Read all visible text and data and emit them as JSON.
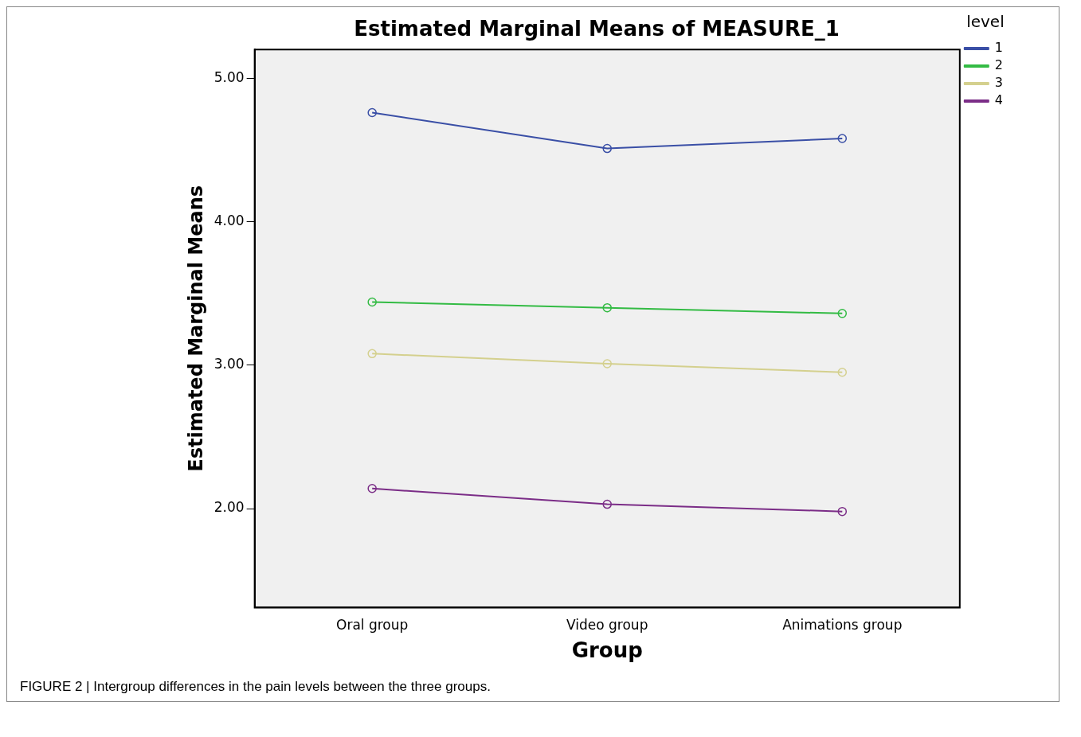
{
  "chart_data": {
    "type": "line",
    "title": "Estimated Marginal Means of MEASURE_1",
    "xlabel": "Group",
    "ylabel": "Estimated Marginal Means",
    "legend_title": "level",
    "categories": [
      "Oral group",
      "Video group",
      "Animations group"
    ],
    "series": [
      {
        "name": "1",
        "color": "#3a4fa6",
        "values": [
          4.76,
          4.51,
          4.58
        ]
      },
      {
        "name": "2",
        "color": "#33bb44",
        "values": [
          3.44,
          3.4,
          3.36
        ]
      },
      {
        "name": "3",
        "color": "#d4d08e",
        "values": [
          3.08,
          3.01,
          2.95
        ]
      },
      {
        "name": "4",
        "color": "#7b2d87",
        "values": [
          2.14,
          2.03,
          1.98
        ]
      }
    ],
    "ylim": [
      1.31,
      5.2
    ],
    "yticks": [
      {
        "value": 2,
        "label": "2.00"
      },
      {
        "value": 3,
        "label": "3.00"
      },
      {
        "value": 4,
        "label": "4.00"
      },
      {
        "value": 5,
        "label": "5.00"
      }
    ],
    "grid": false,
    "legend": "top right",
    "marker": "circle",
    "line_style": "solid",
    "annotations": [
      "FIGURE 2 | Intergroup differences in the pain levels between the three groups."
    ]
  }
}
